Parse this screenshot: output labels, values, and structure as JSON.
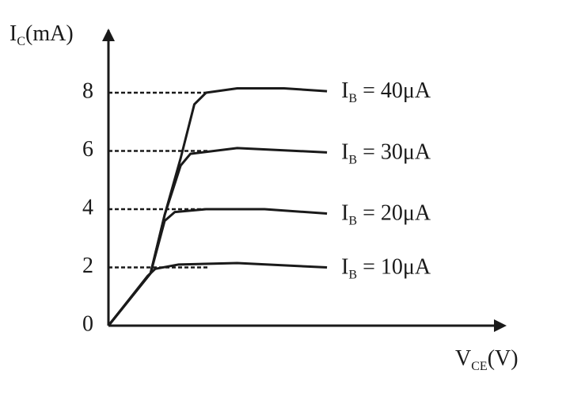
{
  "chart_data": {
    "type": "line",
    "y_label": {
      "symbol": "I",
      "subscript": "C",
      "text": "(mA)"
    },
    "x_label": {
      "symbol": "V",
      "subscript": "CE",
      "text": "(V)"
    },
    "xlim": [
      0,
      10
    ],
    "ylim": [
      0,
      10
    ],
    "yticks": [
      0,
      2,
      4,
      6,
      8
    ],
    "color": "#1a1a1a",
    "series": [
      {
        "name": {
          "symbol": "I",
          "subscript": "B",
          "text": " = 40μA"
        },
        "x": [
          0,
          1.08,
          1.44,
          1.85,
          2.2,
          2.5,
          3.3,
          4.5,
          5.6
        ],
        "values": [
          0,
          1.8,
          3.8,
          5.75,
          7.6,
          8.0,
          8.15,
          8.15,
          8.05
        ]
      },
      {
        "name": {
          "symbol": "I",
          "subscript": "B",
          "text": " = 30μA"
        },
        "x": [
          0,
          1.08,
          1.44,
          1.85,
          2.1,
          3.3,
          5.6
        ],
        "values": [
          0,
          1.8,
          3.8,
          5.5,
          5.9,
          6.1,
          5.95
        ]
      },
      {
        "name": {
          "symbol": "I",
          "subscript": "B",
          "text": " = 20μA"
        },
        "x": [
          0,
          1.08,
          1.44,
          1.7,
          2.5,
          4.0,
          5.6
        ],
        "values": [
          0,
          1.8,
          3.6,
          3.9,
          4.0,
          4.0,
          3.85
        ]
      },
      {
        "name": {
          "symbol": "I",
          "subscript": "B",
          "text": " = 10μA"
        },
        "x": [
          0,
          1.0,
          1.2,
          1.8,
          3.3,
          5.6
        ],
        "values": [
          0,
          1.7,
          1.95,
          2.1,
          2.15,
          2.0
        ]
      }
    ]
  }
}
